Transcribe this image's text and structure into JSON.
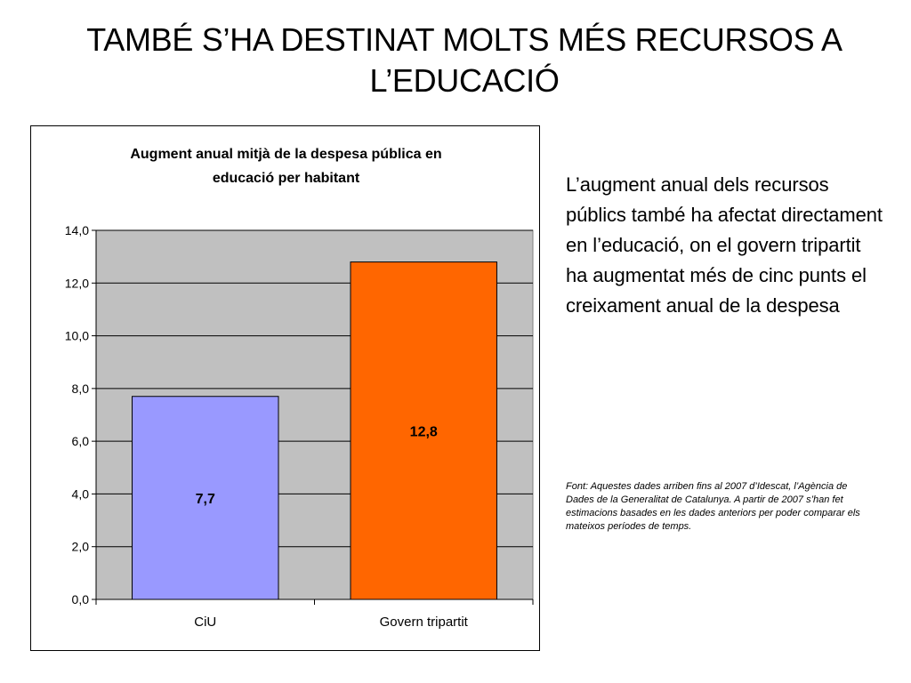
{
  "slide": {
    "title": "TAMBÉ S’HA DESTINAT MOLTS MÉS RECURSOS A L’EDUCACIÓ",
    "description": "L’augment anual dels recursos públics també ha afectat directament en l’educació, on el govern tripartit ha augmentat més de cinc punts el creixament anual de la despesa",
    "source": "Font: Aquestes dades arriben fins al 2007 d’Idescat, l’Agència de Dades de la Generalitat de Catalunya. A partir de 2007 s’han fet estimacions basades en les dades anteriors per poder comparar els mateixos períodes de temps."
  },
  "chart_data": {
    "type": "bar",
    "title_lines": [
      "Augment anual mitjà de la despesa pública en",
      "educació per habitant"
    ],
    "categories": [
      "CiU",
      "Govern tripartit"
    ],
    "values": [
      7.7,
      12.8
    ],
    "value_labels": [
      "7,7",
      "12,8"
    ],
    "bar_colors": [
      "#9999ff",
      "#ff6600"
    ],
    "plot_background": "#c0c0c0",
    "ylim": [
      0,
      14
    ],
    "ytick_values": [
      0,
      2,
      4,
      6,
      8,
      10,
      12,
      14
    ],
    "ytick_labels": [
      "0,0",
      "2,0",
      "4,0",
      "6,0",
      "8,0",
      "10,0",
      "12,0",
      "14,0"
    ],
    "grid": true,
    "legend": "none"
  }
}
